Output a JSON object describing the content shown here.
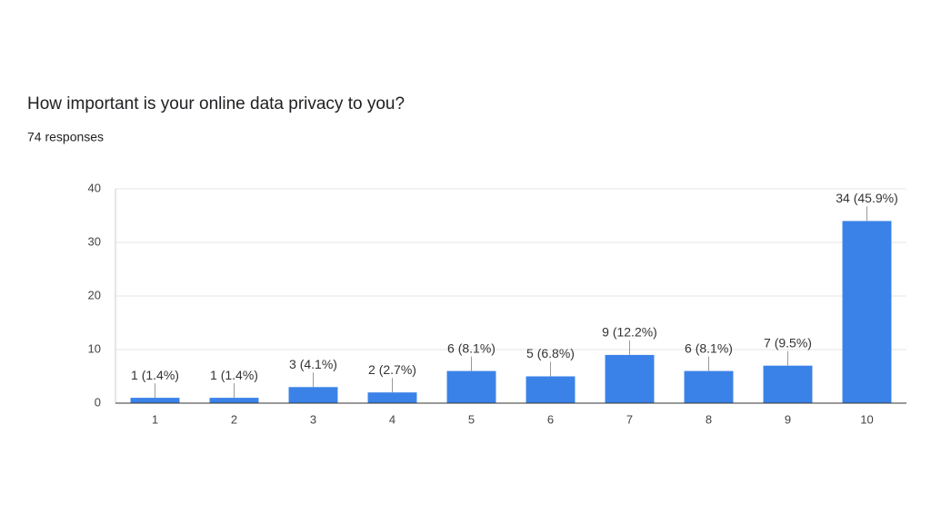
{
  "chart_data": {
    "type": "bar",
    "title": "How important is your online data privacy to you?",
    "subtitle": "74 responses",
    "categories": [
      "1",
      "2",
      "3",
      "4",
      "5",
      "6",
      "7",
      "8",
      "9",
      "10"
    ],
    "values": [
      1,
      1,
      3,
      2,
      6,
      5,
      9,
      6,
      7,
      34
    ],
    "value_labels": [
      "1 (1.4%)",
      "1 (1.4%)",
      "3 (4.1%)",
      "2 (2.7%)",
      "6 (8.1%)",
      "5 (6.8%)",
      "9 (12.2%)",
      "6 (8.1%)",
      "7 (9.5%)",
      "34 (45.9%)"
    ],
    "color": "#3b82e8",
    "ylim": [
      0,
      40
    ],
    "yticks": [
      0,
      10,
      20,
      30,
      40
    ],
    "grid": true
  }
}
